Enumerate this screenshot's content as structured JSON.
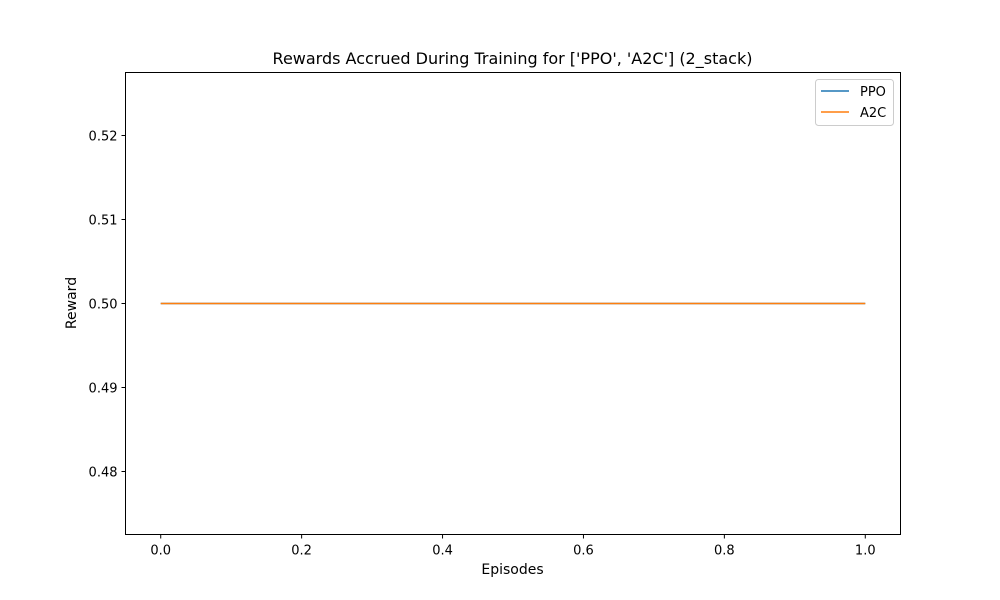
{
  "chart_data": {
    "type": "line",
    "title": "Rewards Accrued During Training for ['PPO', 'A2C'] (2_stack)",
    "xlabel": "Episodes",
    "ylabel": "Reward",
    "xlim": [
      -0.05,
      1.05
    ],
    "ylim": [
      0.4725,
      0.5275
    ],
    "x_ticks": [
      0.0,
      0.2,
      0.4,
      0.6,
      0.8,
      1.0
    ],
    "x_tick_labels": [
      "0.0",
      "0.2",
      "0.4",
      "0.6",
      "0.8",
      "1.0"
    ],
    "y_ticks": [
      0.48,
      0.49,
      0.5,
      0.51,
      0.52
    ],
    "y_tick_labels": [
      "0.48",
      "0.49",
      "0.50",
      "0.51",
      "0.52"
    ],
    "grid": false,
    "legend_position": "top-right",
    "series": [
      {
        "name": "PPO",
        "color": "#1f77b4",
        "x": [
          0.0,
          1.0
        ],
        "y": [
          0.5,
          0.5
        ]
      },
      {
        "name": "A2C",
        "color": "#ff7f0e",
        "x": [
          0.0,
          1.0
        ],
        "y": [
          0.5,
          0.5
        ]
      }
    ]
  }
}
